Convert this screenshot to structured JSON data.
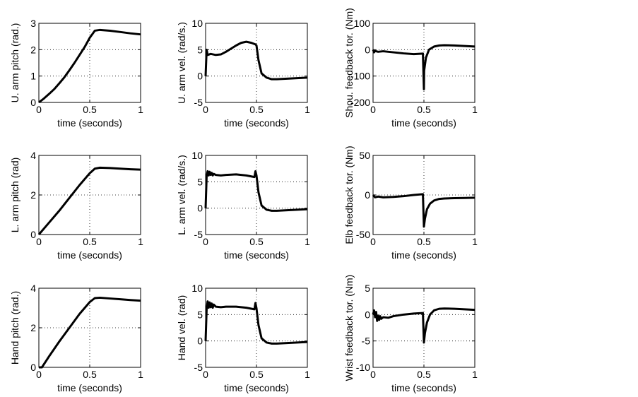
{
  "chart_data": [
    {
      "type": "line",
      "ylabel": "U. arm pitch (rad.)",
      "xlabel": "time (seconds)",
      "color": "#000000",
      "grid": true,
      "xlim": [
        0,
        1
      ],
      "xticks": [
        0,
        0.5,
        1
      ],
      "ylim": [
        0,
        3
      ],
      "yticks": [
        0,
        1,
        2,
        3
      ],
      "x": [
        0,
        0.05,
        0.1,
        0.15,
        0.2,
        0.25,
        0.3,
        0.35,
        0.4,
        0.45,
        0.5,
        0.55,
        0.6,
        0.7,
        0.8,
        0.9,
        1
      ],
      "values": [
        0,
        0.15,
        0.32,
        0.5,
        0.72,
        0.95,
        1.22,
        1.5,
        1.8,
        2.1,
        2.45,
        2.72,
        2.75,
        2.72,
        2.67,
        2.62,
        2.58
      ]
    },
    {
      "type": "line",
      "ylabel": "U. arm  vel. (rad/s.)",
      "xlabel": "time (seconds)",
      "color": "#000000",
      "grid": true,
      "xlim": [
        0,
        1
      ],
      "xticks": [
        0,
        0.5,
        1
      ],
      "ylim": [
        -5,
        10
      ],
      "yticks": [
        -5,
        0,
        5,
        10
      ],
      "x": [
        0,
        0.01,
        0.02,
        0.05,
        0.1,
        0.15,
        0.2,
        0.25,
        0.3,
        0.35,
        0.4,
        0.45,
        0.49,
        0.5,
        0.52,
        0.55,
        0.6,
        0.65,
        0.7,
        0.8,
        0.9,
        1
      ],
      "values": [
        0,
        5,
        4,
        4.2,
        4,
        4.1,
        4.6,
        5.2,
        5.8,
        6.3,
        6.5,
        6.3,
        6,
        5.8,
        3,
        0.5,
        -0.3,
        -0.6,
        -0.6,
        -0.5,
        -0.4,
        -0.3
      ]
    },
    {
      "type": "line",
      "ylabel": "Shou. feedback tor. (Nm)",
      "xlabel": "time (seconds)",
      "color": "#000000",
      "grid": true,
      "xlim": [
        0,
        1
      ],
      "xticks": [
        0,
        0.5,
        1
      ],
      "ylim": [
        -200,
        100
      ],
      "yticks": [
        -200,
        -100,
        0,
        100
      ],
      "x": [
        0,
        0.01,
        0.02,
        0.05,
        0.1,
        0.2,
        0.3,
        0.4,
        0.49,
        0.5,
        0.502,
        0.52,
        0.55,
        0.6,
        0.65,
        0.7,
        0.8,
        0.9,
        1
      ],
      "values": [
        0,
        -10,
        -5,
        -8,
        -6,
        -10,
        -14,
        -17,
        -15,
        -150,
        -80,
        -30,
        0,
        12,
        16,
        17,
        16,
        14,
        12
      ]
    },
    {
      "type": "line",
      "ylabel": "L. arm pitch (rad)",
      "xlabel": "time (seconds)",
      "color": "#000000",
      "grid": true,
      "xlim": [
        0,
        1
      ],
      "xticks": [
        0,
        0.5,
        1
      ],
      "ylim": [
        0,
        4
      ],
      "yticks": [
        0,
        2,
        4
      ],
      "x": [
        0,
        0.1,
        0.2,
        0.3,
        0.4,
        0.5,
        0.55,
        0.6,
        0.7,
        0.8,
        0.9,
        1
      ],
      "values": [
        0,
        0.6,
        1.2,
        1.85,
        2.5,
        3.1,
        3.33,
        3.38,
        3.36,
        3.33,
        3.3,
        3.28
      ]
    },
    {
      "type": "line",
      "ylabel": "L. arm vel. (rad/s.)",
      "xlabel": "time (seconds)",
      "color": "#000000",
      "grid": true,
      "xlim": [
        0,
        1
      ],
      "xticks": [
        0,
        0.5,
        1
      ],
      "ylim": [
        -5,
        10
      ],
      "yticks": [
        -5,
        0,
        5,
        10
      ],
      "x": [
        0,
        0.01,
        0.02,
        0.03,
        0.04,
        0.05,
        0.06,
        0.07,
        0.08,
        0.1,
        0.15,
        0.2,
        0.3,
        0.4,
        0.48,
        0.49,
        0.5,
        0.52,
        0.55,
        0.6,
        0.65,
        0.7,
        0.8,
        0.9,
        1
      ],
      "values": [
        0,
        6,
        7,
        6.2,
        6.9,
        6.3,
        6.7,
        6.2,
        6.5,
        6.3,
        6.2,
        6.3,
        6.4,
        6.2,
        5.9,
        7,
        6.2,
        3,
        0.5,
        -0.3,
        -0.5,
        -0.5,
        -0.4,
        -0.3,
        -0.2
      ]
    },
    {
      "type": "line",
      "ylabel": "Elb feedback tor. (Nm)",
      "xlabel": "time (seconds)",
      "color": "#000000",
      "grid": true,
      "xlim": [
        0,
        1
      ],
      "xticks": [
        0,
        0.5,
        1
      ],
      "ylim": [
        -50,
        50
      ],
      "yticks": [
        -50,
        0,
        50
      ],
      "x": [
        0,
        0.02,
        0.05,
        0.1,
        0.2,
        0.3,
        0.4,
        0.49,
        0.5,
        0.51,
        0.53,
        0.56,
        0.6,
        0.65,
        0.7,
        0.8,
        0.9,
        1
      ],
      "values": [
        0,
        -3,
        -2,
        -3,
        -2.5,
        -1.5,
        0,
        1,
        -40,
        -30,
        -18,
        -11,
        -7,
        -5,
        -4.5,
        -4,
        -3.8,
        -3.5
      ]
    },
    {
      "type": "line",
      "ylabel": "Hand pitch (rad.)",
      "xlabel": "time (seconds)",
      "color": "#000000",
      "grid": true,
      "xlim": [
        0,
        1
      ],
      "xticks": [
        0,
        0.5,
        1
      ],
      "ylim": [
        0,
        4
      ],
      "yticks": [
        0,
        2,
        4
      ],
      "x": [
        0,
        0.03,
        0.1,
        0.2,
        0.3,
        0.4,
        0.5,
        0.55,
        0.6,
        0.7,
        0.8,
        0.9,
        1
      ],
      "values": [
        0,
        0,
        0.55,
        1.3,
        2,
        2.7,
        3.3,
        3.5,
        3.52,
        3.48,
        3.44,
        3.4,
        3.37
      ]
    },
    {
      "type": "line",
      "ylabel": "Hand vel. (rad)",
      "xlabel": "time (seconds)",
      "color": "#000000",
      "grid": true,
      "xlim": [
        0,
        1
      ],
      "xticks": [
        0,
        0.5,
        1
      ],
      "ylim": [
        -5,
        10
      ],
      "yticks": [
        -5,
        0,
        5,
        10
      ],
      "x": [
        0,
        0.01,
        0.02,
        0.03,
        0.04,
        0.05,
        0.06,
        0.07,
        0.08,
        0.1,
        0.15,
        0.2,
        0.3,
        0.4,
        0.48,
        0.49,
        0.5,
        0.52,
        0.55,
        0.6,
        0.65,
        0.7,
        0.8,
        0.9,
        1
      ],
      "values": [
        0,
        6,
        7.5,
        6.3,
        7.3,
        6.4,
        7.1,
        6.3,
        6.9,
        6.5,
        6.4,
        6.5,
        6.5,
        6.3,
        6,
        7.2,
        6.2,
        3,
        0.5,
        -0.3,
        -0.5,
        -0.5,
        -0.4,
        -0.3,
        -0.2
      ]
    },
    {
      "type": "line",
      "ylabel": "Wrist feedback tor. (Nm)",
      "xlabel": "time (seconds)",
      "color": "#000000",
      "grid": true,
      "xlim": [
        0,
        1
      ],
      "xticks": [
        0,
        0.5,
        1
      ],
      "ylim": [
        -10,
        5
      ],
      "yticks": [
        -10,
        -5,
        0,
        5
      ],
      "x": [
        0,
        0.01,
        0.02,
        0.03,
        0.04,
        0.05,
        0.06,
        0.07,
        0.08,
        0.1,
        0.15,
        0.2,
        0.3,
        0.4,
        0.49,
        0.5,
        0.51,
        0.53,
        0.56,
        0.6,
        0.65,
        0.7,
        0.8,
        0.9,
        1
      ],
      "values": [
        0,
        0.8,
        -0.5,
        0.5,
        -1.2,
        -0.2,
        -1,
        -0.3,
        -0.8,
        -0.5,
        -0.6,
        -0.3,
        0,
        0.2,
        0.3,
        -5.3,
        -3.5,
        -1.5,
        0,
        0.8,
        1.1,
        1.15,
        1.1,
        1,
        0.9
      ]
    }
  ]
}
